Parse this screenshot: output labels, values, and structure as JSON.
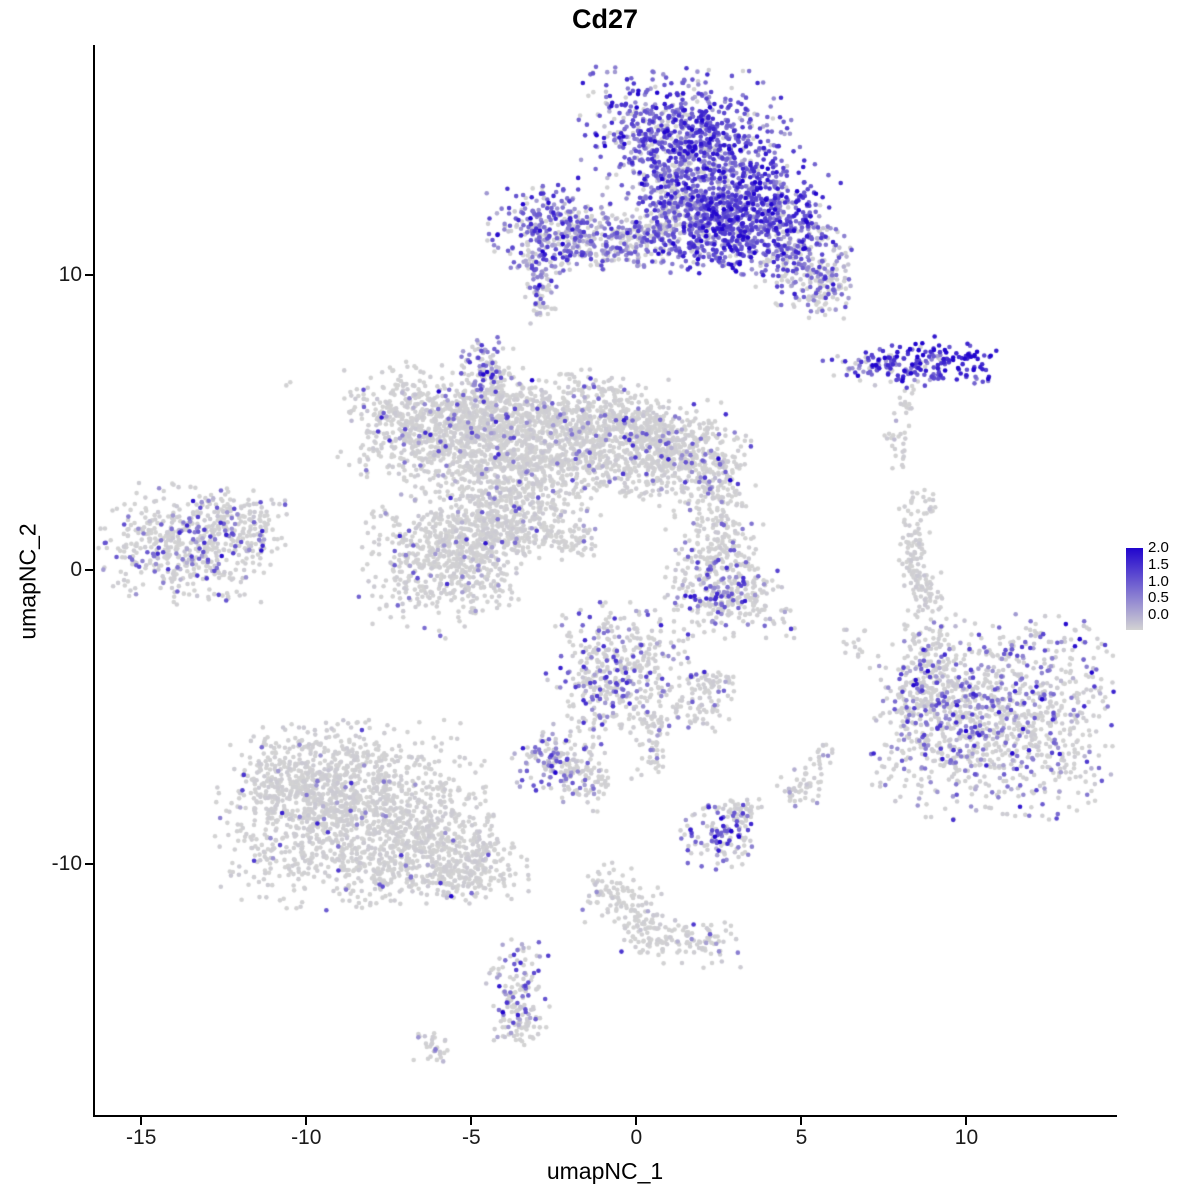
{
  "chart_data": {
    "type": "scatter",
    "title": "Cd27",
    "xlabel": "umapNC_1",
    "ylabel": "umapNC_2",
    "xlim": [
      -16.4,
      14.5
    ],
    "ylim": [
      -18.5,
      17.8
    ],
    "x_ticks": [
      "-15",
      "-10",
      "-5",
      "0",
      "5",
      "10"
    ],
    "x_tick_values": [
      -15,
      -10,
      -5,
      0,
      5,
      10
    ],
    "y_ticks": [
      "10",
      "0",
      "-10"
    ],
    "y_tick_values": [
      10,
      0,
      -10
    ],
    "grid": false,
    "legend": {
      "position": "right",
      "labels": [
        "2.0",
        "1.5",
        "1.0",
        "0.5",
        "0.0"
      ],
      "min": 0.0,
      "max": 2.0
    },
    "colors": {
      "low": "#D3D3D3",
      "high": "#2105CE"
    },
    "point_radius": 2.3,
    "seed": 42,
    "clusters": [
      {
        "cx": 1.2,
        "cy": 15.0,
        "rx": 1.35,
        "ry": 0.95,
        "n": 480,
        "f": 0.88,
        "m": 1.15
      },
      {
        "cx": 2.6,
        "cy": 13.6,
        "rx": 1.15,
        "ry": 1.0,
        "n": 380,
        "f": 0.85,
        "m": 1.2
      },
      {
        "cx": 1.5,
        "cy": 12.9,
        "rx": 0.6,
        "ry": 0.7,
        "n": 140,
        "f": 0.6,
        "m": 0.9
      },
      {
        "cx": 0.6,
        "cy": 13.9,
        "rx": 0.5,
        "ry": 0.8,
        "n": 100,
        "f": 0.75,
        "m": 1.0
      },
      {
        "cx": -2.7,
        "cy": 11.5,
        "rx": 0.85,
        "ry": 0.75,
        "n": 280,
        "f": 0.7,
        "m": 1.0
      },
      {
        "cx": -1.2,
        "cy": 11.1,
        "rx": 1.0,
        "ry": 0.45,
        "n": 170,
        "f": 0.45,
        "m": 0.8
      },
      {
        "cx": 0.3,
        "cy": 11.4,
        "rx": 1.0,
        "ry": 0.5,
        "n": 200,
        "f": 0.55,
        "m": 0.9
      },
      {
        "cx": 2.0,
        "cy": 11.6,
        "rx": 0.9,
        "ry": 0.7,
        "n": 260,
        "f": 0.8,
        "m": 1.2
      },
      {
        "cx": 3.6,
        "cy": 11.8,
        "rx": 1.2,
        "ry": 0.9,
        "n": 520,
        "f": 0.88,
        "m": 1.3
      },
      {
        "cx": 5.0,
        "cy": 10.6,
        "rx": 0.7,
        "ry": 0.8,
        "n": 200,
        "f": 0.6,
        "m": 0.9
      },
      {
        "cx": 5.6,
        "cy": 9.6,
        "rx": 0.5,
        "ry": 0.5,
        "n": 90,
        "f": 0.4,
        "m": 0.8
      },
      {
        "cx": -2.9,
        "cy": 9.9,
        "rx": 0.3,
        "ry": 0.4,
        "n": 45,
        "f": 0.5,
        "m": 0.9
      },
      {
        "cx": -2.9,
        "cy": 8.9,
        "rx": 0.22,
        "ry": 0.3,
        "n": 25,
        "f": 0.15,
        "m": 0.6
      },
      {
        "cx": 8.9,
        "cy": 7.1,
        "rx": 1.0,
        "ry": 0.4,
        "n": 150,
        "f": 0.95,
        "m": 1.6
      },
      {
        "cx": 7.2,
        "cy": 6.9,
        "rx": 0.8,
        "ry": 0.3,
        "n": 70,
        "f": 0.8,
        "m": 1.1
      },
      {
        "cx": 8.1,
        "cy": 5.7,
        "rx": 0.2,
        "ry": 0.35,
        "n": 18,
        "f": 0.2,
        "m": 0.7
      },
      {
        "cx": 7.9,
        "cy": 4.4,
        "rx": 0.25,
        "ry": 0.3,
        "n": 14,
        "f": 0.15,
        "m": 0.6
      },
      {
        "cx": -6.9,
        "cy": 5.1,
        "rx": 1.0,
        "ry": 0.95,
        "n": 420,
        "f": 0.1,
        "m": 0.9
      },
      {
        "cx": -5.5,
        "cy": 4.3,
        "rx": 0.9,
        "ry": 0.85,
        "n": 330,
        "f": 0.07,
        "m": 0.8
      },
      {
        "cx": -4.3,
        "cy": 5.1,
        "rx": 0.9,
        "ry": 0.8,
        "n": 320,
        "f": 0.06,
        "m": 0.8
      },
      {
        "cx": -3.1,
        "cy": 3.9,
        "rx": 1.0,
        "ry": 1.0,
        "n": 400,
        "f": 0.05,
        "m": 0.8
      },
      {
        "cx": -1.7,
        "cy": 4.7,
        "rx": 1.15,
        "ry": 1.0,
        "n": 470,
        "f": 0.06,
        "m": 0.8
      },
      {
        "cx": -0.3,
        "cy": 4.5,
        "rx": 1.0,
        "ry": 0.95,
        "n": 380,
        "f": 0.08,
        "m": 0.9
      },
      {
        "cx": 1.0,
        "cy": 4.1,
        "rx": 0.9,
        "ry": 0.8,
        "n": 280,
        "f": 0.12,
        "m": 0.9
      },
      {
        "cx": 2.0,
        "cy": 3.4,
        "rx": 0.8,
        "ry": 0.8,
        "n": 230,
        "f": 0.1,
        "m": 0.9
      },
      {
        "cx": -4.6,
        "cy": 7.0,
        "rx": 0.4,
        "ry": 0.5,
        "n": 80,
        "f": 0.55,
        "m": 1.0
      },
      {
        "cx": -4.4,
        "cy": 6.1,
        "rx": 0.3,
        "ry": 0.4,
        "n": 45,
        "f": 0.2,
        "m": 0.8
      },
      {
        "cx": -3.9,
        "cy": 2.3,
        "rx": 0.8,
        "ry": 0.9,
        "n": 260,
        "f": 0.05,
        "m": 0.8
      },
      {
        "cx": -4.7,
        "cy": 1.3,
        "rx": 0.8,
        "ry": 0.7,
        "n": 220,
        "f": 0.05,
        "m": 0.8
      },
      {
        "cx": -5.9,
        "cy": 0.3,
        "rx": 1.15,
        "ry": 1.05,
        "n": 520,
        "f": 0.06,
        "m": 0.8
      },
      {
        "cx": -2.9,
        "cy": 1.4,
        "rx": 0.9,
        "ry": 0.4,
        "n": 110,
        "f": 0.05,
        "m": 0.8
      },
      {
        "cx": -2.0,
        "cy": 0.9,
        "rx": 0.4,
        "ry": 0.3,
        "n": 40,
        "f": 0.05,
        "m": 0.8
      },
      {
        "cx": -13.6,
        "cy": 0.9,
        "rx": 1.25,
        "ry": 0.95,
        "n": 500,
        "f": 0.2,
        "m": 0.95
      },
      {
        "cx": -12.0,
        "cy": 1.6,
        "rx": 0.7,
        "ry": 0.5,
        "n": 120,
        "f": 0.1,
        "m": 0.8
      },
      {
        "cx": 2.6,
        "cy": 1.4,
        "rx": 0.5,
        "ry": 0.8,
        "n": 110,
        "f": 0.12,
        "m": 0.9
      },
      {
        "cx": 2.4,
        "cy": -0.4,
        "rx": 0.7,
        "ry": 0.9,
        "n": 260,
        "f": 0.3,
        "m": 1.0
      },
      {
        "cx": 3.5,
        "cy": -0.9,
        "rx": 0.5,
        "ry": 0.5,
        "n": 80,
        "f": 0.1,
        "m": 0.8
      },
      {
        "cx": -0.6,
        "cy": -3.5,
        "rx": 1.0,
        "ry": 1.15,
        "n": 430,
        "f": 0.28,
        "m": 1.0
      },
      {
        "cx": 0.4,
        "cy": -5.7,
        "rx": 0.25,
        "ry": 0.8,
        "n": 60,
        "f": 0.1,
        "m": 0.8
      },
      {
        "cx": 1.9,
        "cy": -4.6,
        "rx": 0.45,
        "ry": 0.5,
        "n": 70,
        "f": 0.12,
        "m": 0.8
      },
      {
        "cx": 2.4,
        "cy": -3.8,
        "rx": 0.3,
        "ry": 0.3,
        "n": 35,
        "f": 0.1,
        "m": 0.8
      },
      {
        "cx": -2.6,
        "cy": -6.6,
        "rx": 0.55,
        "ry": 0.5,
        "n": 120,
        "f": 0.45,
        "m": 1.0
      },
      {
        "cx": -1.5,
        "cy": -7.0,
        "rx": 0.4,
        "ry": 0.55,
        "n": 80,
        "f": 0.15,
        "m": 0.8
      },
      {
        "cx": -8.6,
        "cy": -8.3,
        "rx": 1.9,
        "ry": 1.5,
        "n": 1250,
        "f": 0.035,
        "m": 0.9
      },
      {
        "cx": -6.3,
        "cy": -9.4,
        "rx": 1.2,
        "ry": 0.9,
        "n": 380,
        "f": 0.03,
        "m": 0.8
      },
      {
        "cx": -10.0,
        "cy": -7.2,
        "rx": 0.9,
        "ry": 0.75,
        "n": 260,
        "f": 0.03,
        "m": 0.8
      },
      {
        "cx": -4.9,
        "cy": -10.2,
        "rx": 0.8,
        "ry": 0.5,
        "n": 140,
        "f": 0.04,
        "m": 0.8
      },
      {
        "cx": 11.0,
        "cy": -5.0,
        "rx": 1.85,
        "ry": 1.6,
        "n": 1050,
        "f": 0.3,
        "m": 0.95
      },
      {
        "cx": 8.9,
        "cy": -4.4,
        "rx": 0.7,
        "ry": 0.9,
        "n": 200,
        "f": 0.35,
        "m": 1.0
      },
      {
        "cx": 9.0,
        "cy": -2.7,
        "rx": 0.4,
        "ry": 0.5,
        "n": 60,
        "f": 0.15,
        "m": 0.8
      },
      {
        "cx": 8.4,
        "cy": 0.8,
        "rx": 0.25,
        "ry": 0.9,
        "n": 85,
        "f": 0.04,
        "m": 0.7
      },
      {
        "cx": 8.7,
        "cy": -0.9,
        "rx": 0.3,
        "ry": 0.5,
        "n": 50,
        "f": 0.05,
        "m": 0.7
      },
      {
        "cx": 8.9,
        "cy": 2.2,
        "rx": 0.18,
        "ry": 0.25,
        "n": 14,
        "f": 0.1,
        "m": 0.7
      },
      {
        "cx": 2.5,
        "cy": -9.0,
        "rx": 0.55,
        "ry": 0.55,
        "n": 120,
        "f": 0.45,
        "m": 1.05
      },
      {
        "cx": 3.3,
        "cy": -8.2,
        "rx": 0.3,
        "ry": 0.3,
        "n": 35,
        "f": 0.15,
        "m": 0.8
      },
      {
        "cx": 5.0,
        "cy": -7.4,
        "rx": 0.35,
        "ry": 0.35,
        "n": 45,
        "f": 0.12,
        "m": 0.8
      },
      {
        "cx": 5.6,
        "cy": -6.3,
        "rx": 0.2,
        "ry": 0.25,
        "n": 15,
        "f": 0.1,
        "m": 0.7
      },
      {
        "cx": -0.8,
        "cy": -10.9,
        "rx": 0.4,
        "ry": 0.5,
        "n": 70,
        "f": 0.04,
        "m": 0.7
      },
      {
        "cx": 0.1,
        "cy": -11.9,
        "rx": 0.35,
        "ry": 0.6,
        "n": 70,
        "f": 0.04,
        "m": 0.7
      },
      {
        "cx": 0.8,
        "cy": -12.6,
        "rx": 0.5,
        "ry": 0.35,
        "n": 55,
        "f": 0.05,
        "m": 0.7
      },
      {
        "cx": 2.1,
        "cy": -12.7,
        "rx": 0.5,
        "ry": 0.4,
        "n": 55,
        "f": 0.08,
        "m": 0.9
      },
      {
        "cx": -3.6,
        "cy": -14.3,
        "rx": 0.45,
        "ry": 0.85,
        "n": 120,
        "f": 0.4,
        "m": 1.0
      },
      {
        "cx": -3.5,
        "cy": -15.5,
        "rx": 0.3,
        "ry": 0.35,
        "n": 40,
        "f": 0.15,
        "m": 0.8
      },
      {
        "cx": -6.1,
        "cy": -16.2,
        "rx": 0.3,
        "ry": 0.28,
        "n": 30,
        "f": 0.05,
        "m": 0.7
      },
      {
        "cx": -10.6,
        "cy": 6.4,
        "rx": 0.08,
        "ry": 0.08,
        "n": 2,
        "f": 0.0,
        "m": 0.0
      },
      {
        "cx": -5.9,
        "cy": -2.2,
        "rx": 0.1,
        "ry": 0.1,
        "n": 3,
        "f": 0.2,
        "m": 0.8
      },
      {
        "cx": 4.4,
        "cy": -1.8,
        "rx": 0.3,
        "ry": 0.3,
        "n": 12,
        "f": 0.2,
        "m": 0.8
      },
      {
        "cx": 6.6,
        "cy": -2.4,
        "rx": 0.2,
        "ry": 0.3,
        "n": 14,
        "f": 0.1,
        "m": 0.7
      },
      {
        "cx": 7.9,
        "cy": 3.8,
        "rx": 0.15,
        "ry": 0.2,
        "n": 8,
        "f": 0.1,
        "m": 0.7
      }
    ]
  }
}
